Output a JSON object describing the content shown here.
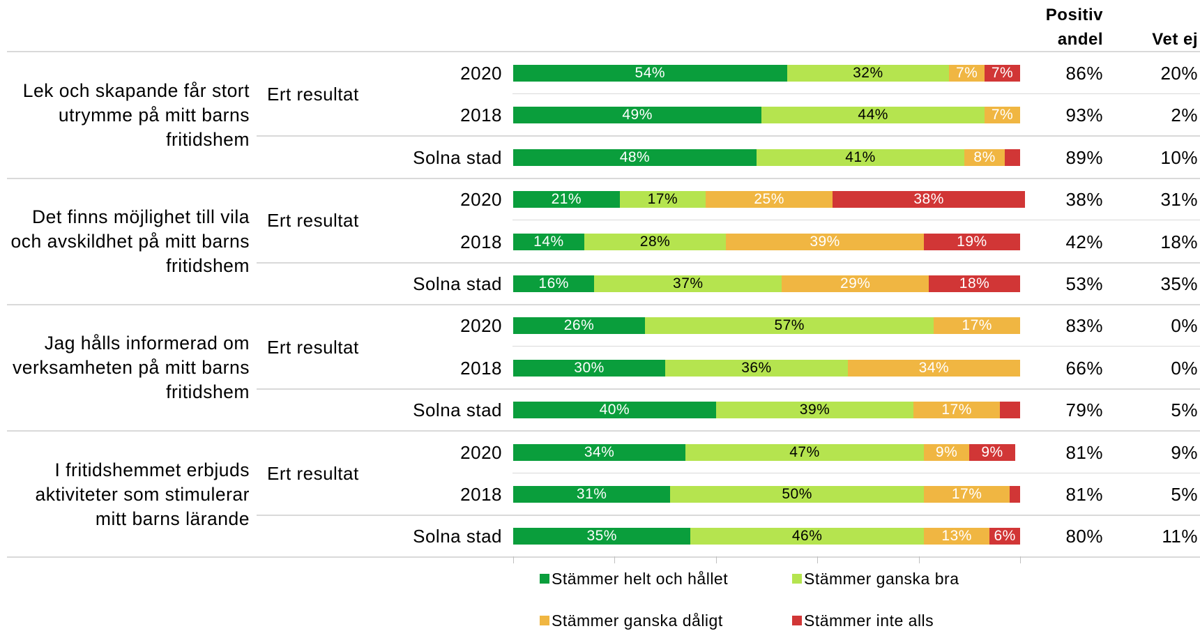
{
  "chart_data": {
    "type": "stacked-bar",
    "questions": [
      "Lek och skapande får stort utrymme på mitt barns fritidshem",
      "Det finns möjlighet till vila och avskildhet på mitt barns fritidshem",
      "Jag hålls informerad om verksamheten på mitt barns fritidshem",
      "I fritidshemmet erbjuds aktiviteter som stimulerar mitt barns lärande"
    ],
    "group_labels": [
      "Ert resultat",
      "Ert resultat",
      "Ert resultat",
      "Ert resultat"
    ],
    "categories": [
      "2020",
      "2018",
      "Solna stad",
      "2020",
      "2018",
      "Solna stad",
      "2020",
      "2018",
      "Solna stad",
      "2020",
      "2018",
      "Solna stad"
    ],
    "series": [
      {
        "name": "Stämmer helt och hållet",
        "color": "#0a9e3c",
        "label_color": "#ffffff",
        "values": [
          54,
          49,
          48,
          21,
          14,
          16,
          26,
          30,
          40,
          34,
          31,
          35
        ],
        "value_labels": [
          "54%",
          "49%",
          "48%",
          "21%",
          "14%",
          "16%",
          "26%",
          "30%",
          "40%",
          "34%",
          "31%",
          "35%"
        ]
      },
      {
        "name": "Stämmer ganska bra",
        "color": "#b5e44f",
        "label_color": "#000000",
        "values": [
          32,
          44,
          41,
          17,
          28,
          37,
          57,
          36,
          39,
          47,
          50,
          46
        ],
        "value_labels": [
          "32%",
          "44%",
          "41%",
          "17%",
          "28%",
          "37%",
          "57%",
          "36%",
          "39%",
          "47%",
          "50%",
          "46%"
        ]
      },
      {
        "name": "Stämmer ganska dåligt",
        "color": "#f0b642",
        "label_color": "#ffffff",
        "values": [
          7,
          7,
          8,
          25,
          39,
          29,
          17,
          34,
          17,
          9,
          17,
          13
        ],
        "value_labels": [
          "7%",
          "7%",
          "8%",
          "25%",
          "39%",
          "29%",
          "17%",
          "34%",
          "17%",
          "9%",
          "17%",
          "13%"
        ]
      },
      {
        "name": "Stämmer inte alls",
        "color": "#d13636",
        "label_color": "#ffffff",
        "values": [
          7,
          0,
          3,
          38,
          19,
          18,
          0,
          0,
          4,
          9,
          2,
          6
        ],
        "value_labels": [
          "7%",
          null,
          null,
          "38%",
          "19%",
          "18%",
          null,
          null,
          null,
          "9%",
          null,
          "6%"
        ]
      }
    ],
    "columns": [
      {
        "name": "Positiv andel",
        "values": [
          86,
          93,
          89,
          38,
          42,
          53,
          83,
          66,
          79,
          81,
          81,
          80
        ],
        "value_labels": [
          "86%",
          "93%",
          "89%",
          "38%",
          "42%",
          "53%",
          "83%",
          "66%",
          "79%",
          "81%",
          "81%",
          "80%"
        ]
      },
      {
        "name": "Vet ej",
        "values": [
          20,
          2,
          10,
          31,
          18,
          35,
          0,
          0,
          5,
          9,
          5,
          11
        ],
        "value_labels": [
          "20%",
          "2%",
          "10%",
          "31%",
          "18%",
          "35%",
          "0%",
          "0%",
          "5%",
          "9%",
          "5%",
          "11%"
        ]
      }
    ],
    "xlim": [
      0,
      100
    ],
    "xticks": [
      0,
      20,
      40,
      60,
      80,
      100
    ]
  }
}
